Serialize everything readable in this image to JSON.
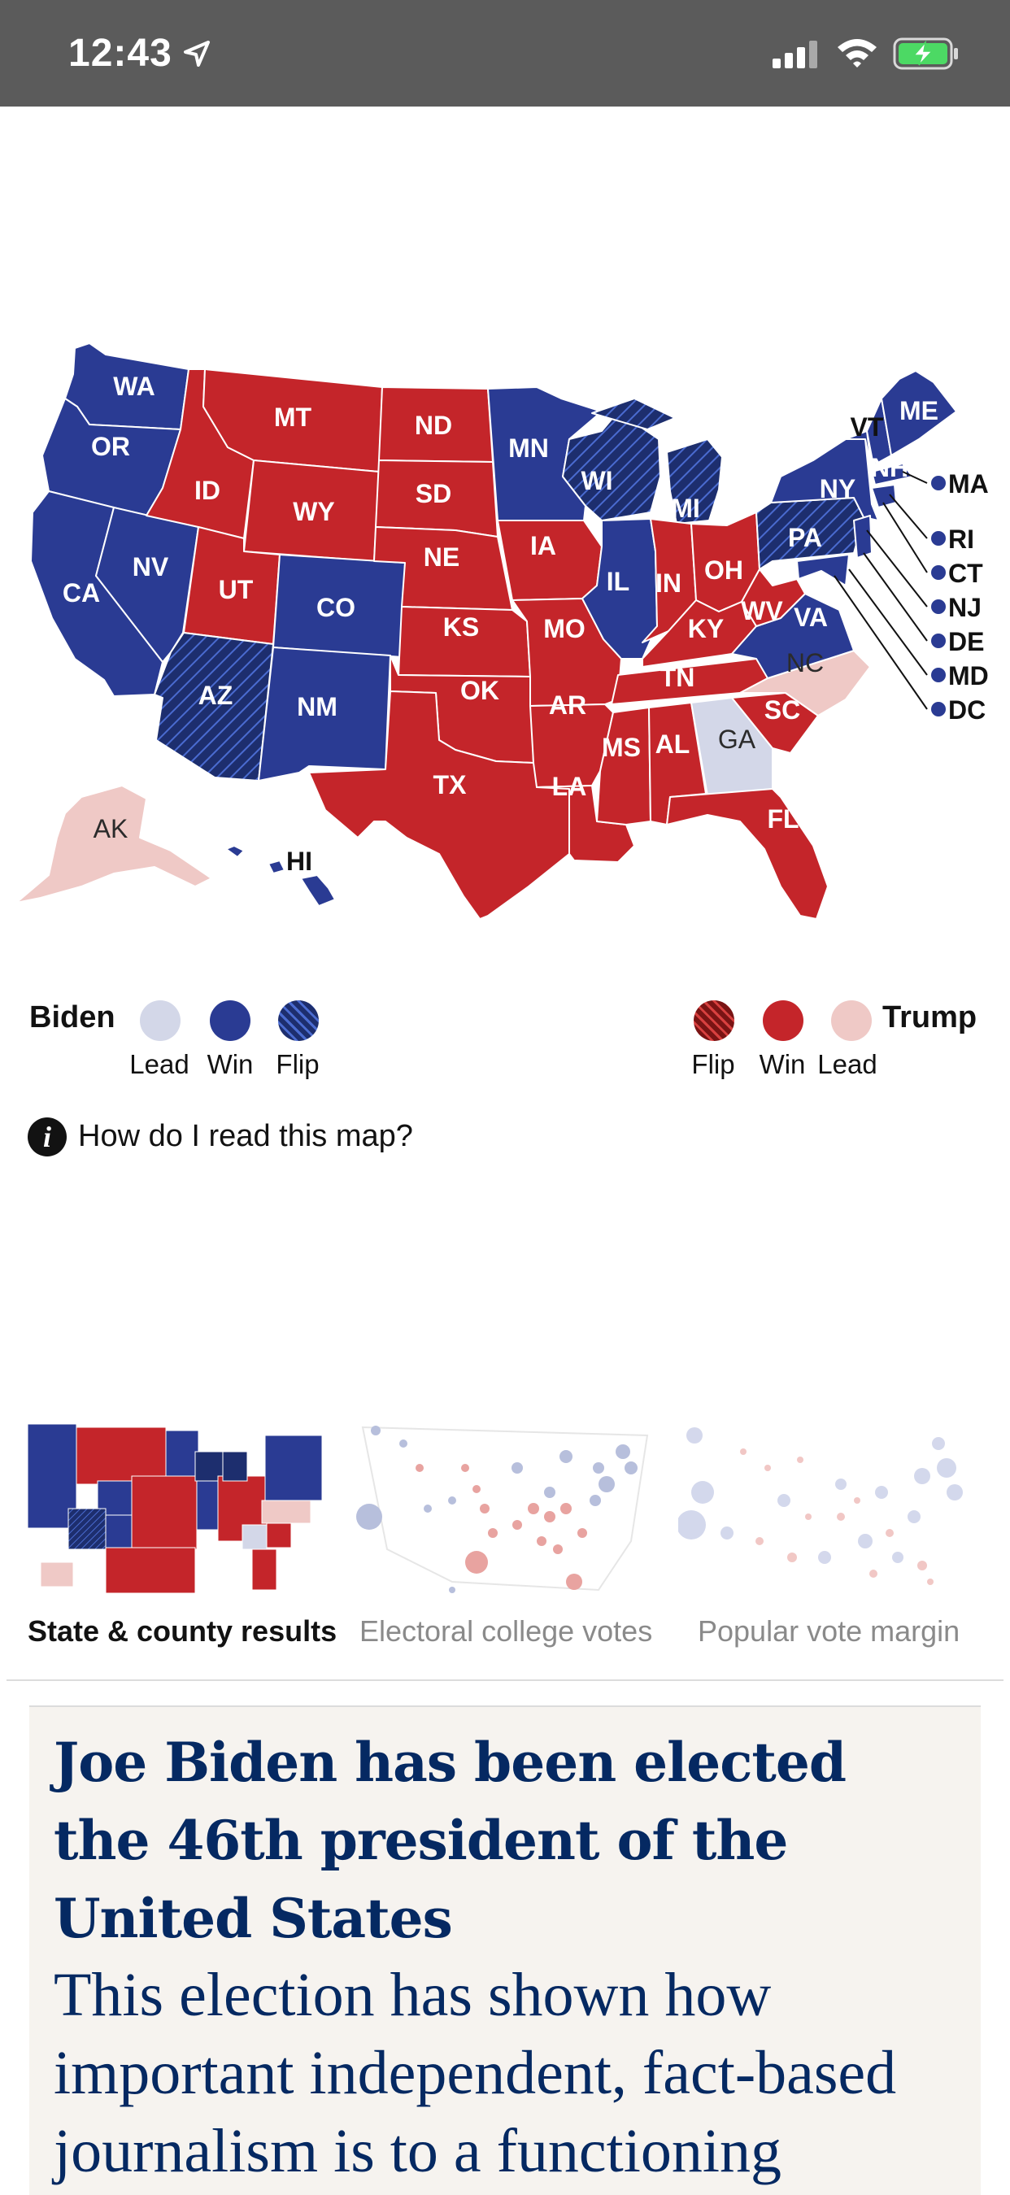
{
  "status_bar": {
    "time": "12:43"
  },
  "map": {
    "colors": {
      "biden": "#2a3b93",
      "trump": "#c4252a",
      "trump_lead": "#efc9c6",
      "biden_lead": "#d3d7e8"
    },
    "states": [
      "WA",
      "OR",
      "CA",
      "NV",
      "ID",
      "MT",
      "WY",
      "UT",
      "AZ",
      "CO",
      "NM",
      "ND",
      "SD",
      "NE",
      "KS",
      "OK",
      "TX",
      "MN",
      "IA",
      "MO",
      "AR",
      "LA",
      "WI",
      "IL",
      "MI",
      "IN",
      "OH",
      "KY",
      "TN",
      "MS",
      "AL",
      "GA",
      "FL",
      "SC",
      "NC",
      "VA",
      "WV",
      "PA",
      "NY",
      "VT",
      "NH",
      "ME",
      "AK",
      "HI"
    ],
    "small_states": [
      "MA",
      "RI",
      "CT",
      "NJ",
      "DE",
      "MD",
      "DC"
    ]
  },
  "legend": {
    "biden": {
      "name": "Biden",
      "lead": "Lead",
      "win": "Win",
      "flip": "Flip"
    },
    "trump": {
      "name": "Trump",
      "lead": "Lead",
      "win": "Win",
      "flip": "Flip"
    }
  },
  "help": {
    "text": "How do I read this map?"
  },
  "tabs": [
    {
      "label": "State & county results"
    },
    {
      "label": "Electoral college votes"
    },
    {
      "label": "Popular vote margin"
    }
  ],
  "article": {
    "headline": "Joe Biden has been elected the 46th president of the United States",
    "subhead": "This election has shown how important independent, fact-based journalism is to a functioning"
  }
}
